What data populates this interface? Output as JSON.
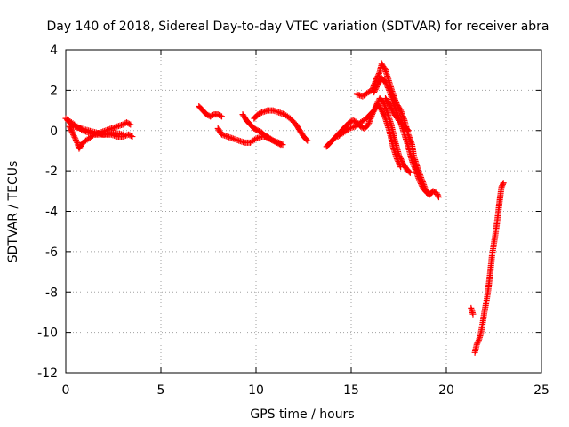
{
  "chart_data": {
    "type": "scatter",
    "title": "Day 140 of 2018, Sidereal Day-to-day VTEC variation (SDTVAR) for receiver abra",
    "xlabel": "GPS time / hours",
    "ylabel": "SDTVAR / TECUs",
    "xlim": [
      0,
      25
    ],
    "ylim": [
      -12,
      4
    ],
    "xticks": [
      "0",
      "5",
      "10",
      "15",
      "20",
      "25"
    ],
    "yticks": [
      "4",
      "2",
      "0",
      "-2",
      "-4",
      "-6",
      "-8",
      "-10",
      "-12"
    ],
    "grid": true,
    "marker": "+",
    "color": "#ff0000",
    "series": [
      {
        "name": "SDTVAR",
        "segments": [
          [
            [
              0.0,
              0.6
            ],
            [
              0.3,
              0.4
            ],
            [
              0.6,
              0.2
            ],
            [
              0.9,
              0.0
            ],
            [
              1.2,
              -0.1
            ],
            [
              1.5,
              -0.2
            ],
            [
              1.8,
              -0.2
            ],
            [
              2.1,
              -0.2
            ],
            [
              2.4,
              -0.2
            ],
            [
              2.7,
              -0.3
            ],
            [
              3.0,
              -0.3
            ],
            [
              3.3,
              -0.2
            ],
            [
              3.5,
              -0.3
            ]
          ],
          [
            [
              0.2,
              0.2
            ],
            [
              0.4,
              -0.2
            ],
            [
              0.6,
              -0.6
            ],
            [
              0.7,
              -0.9
            ],
            [
              0.9,
              -0.6
            ],
            [
              1.2,
              -0.4
            ],
            [
              1.5,
              -0.2
            ],
            [
              1.8,
              -0.1
            ],
            [
              2.1,
              0.0
            ],
            [
              2.4,
              0.1
            ],
            [
              2.7,
              0.2
            ],
            [
              3.0,
              0.3
            ],
            [
              3.2,
              0.4
            ],
            [
              3.4,
              0.3
            ]
          ],
          [
            [
              0.1,
              0.5
            ],
            [
              0.4,
              0.2
            ],
            [
              0.8,
              0.1
            ],
            [
              1.2,
              0.0
            ],
            [
              1.6,
              -0.1
            ],
            [
              2.0,
              -0.2
            ],
            [
              2.5,
              -0.1
            ],
            [
              3.0,
              -0.2
            ]
          ],
          [
            [
              7.0,
              1.2
            ],
            [
              7.2,
              1.0
            ],
            [
              7.4,
              0.8
            ],
            [
              7.6,
              0.7
            ],
            [
              7.8,
              0.8
            ],
            [
              8.0,
              0.8
            ],
            [
              8.2,
              0.7
            ]
          ],
          [
            [
              8.0,
              0.1
            ],
            [
              8.2,
              -0.2
            ],
            [
              8.5,
              -0.3
            ],
            [
              8.8,
              -0.4
            ],
            [
              9.1,
              -0.5
            ],
            [
              9.4,
              -0.6
            ],
            [
              9.7,
              -0.6
            ],
            [
              10.0,
              -0.4
            ],
            [
              10.3,
              -0.3
            ],
            [
              10.6,
              -0.3
            ],
            [
              10.9,
              -0.5
            ],
            [
              11.2,
              -0.6
            ],
            [
              11.4,
              -0.7
            ]
          ],
          [
            [
              9.3,
              0.8
            ],
            [
              9.5,
              0.5
            ],
            [
              9.7,
              0.3
            ],
            [
              9.9,
              0.1
            ],
            [
              10.1,
              0.0
            ],
            [
              10.3,
              -0.1
            ],
            [
              10.5,
              -0.3
            ],
            [
              10.7,
              -0.4
            ],
            [
              10.9,
              -0.5
            ],
            [
              11.1,
              -0.6
            ],
            [
              11.3,
              -0.7
            ]
          ],
          [
            [
              9.9,
              0.6
            ],
            [
              10.1,
              0.8
            ],
            [
              10.3,
              0.9
            ],
            [
              10.6,
              1.0
            ],
            [
              10.9,
              1.0
            ],
            [
              11.2,
              0.9
            ],
            [
              11.5,
              0.8
            ],
            [
              11.8,
              0.6
            ],
            [
              12.1,
              0.3
            ],
            [
              12.3,
              0.0
            ],
            [
              12.5,
              -0.3
            ],
            [
              12.7,
              -0.5
            ]
          ],
          [
            [
              13.7,
              -0.8
            ],
            [
              13.9,
              -0.6
            ],
            [
              14.1,
              -0.4
            ],
            [
              14.3,
              -0.2
            ],
            [
              14.5,
              0.0
            ],
            [
              14.7,
              0.2
            ],
            [
              14.9,
              0.4
            ],
            [
              15.1,
              0.5
            ],
            [
              15.3,
              0.4
            ],
            [
              15.5,
              0.2
            ],
            [
              15.7,
              0.1
            ],
            [
              15.9,
              0.3
            ],
            [
              16.1,
              0.8
            ],
            [
              16.3,
              1.2
            ],
            [
              16.5,
              1.6
            ],
            [
              16.7,
              1.4
            ],
            [
              16.9,
              0.9
            ],
            [
              17.1,
              0.3
            ],
            [
              17.3,
              -0.5
            ],
            [
              17.5,
              -1.2
            ],
            [
              17.7,
              -1.6
            ],
            [
              17.9,
              -1.9
            ],
            [
              18.1,
              -2.1
            ]
          ],
          [
            [
              14.3,
              -0.3
            ],
            [
              14.6,
              -0.1
            ],
            [
              14.9,
              0.1
            ],
            [
              15.2,
              0.2
            ],
            [
              15.5,
              0.4
            ],
            [
              15.8,
              0.6
            ],
            [
              16.0,
              0.8
            ],
            [
              16.2,
              1.0
            ],
            [
              16.4,
              1.3
            ],
            [
              16.6,
              1.0
            ],
            [
              16.8,
              0.6
            ],
            [
              17.0,
              0.0
            ],
            [
              17.2,
              -0.8
            ],
            [
              17.4,
              -1.4
            ],
            [
              17.6,
              -1.8
            ]
          ],
          [
            [
              15.3,
              1.8
            ],
            [
              15.6,
              1.7
            ],
            [
              15.9,
              1.9
            ],
            [
              16.1,
              2.0
            ],
            [
              16.3,
              2.5
            ],
            [
              16.5,
              2.9
            ],
            [
              16.6,
              3.3
            ],
            [
              16.8,
              3.0
            ],
            [
              17.0,
              2.4
            ],
            [
              17.2,
              1.8
            ],
            [
              17.4,
              1.3
            ],
            [
              17.6,
              1.0
            ],
            [
              17.8,
              0.5
            ],
            [
              18.0,
              -0.2
            ],
            [
              18.2,
              -0.7
            ],
            [
              18.3,
              -1.3
            ],
            [
              18.5,
              -1.9
            ],
            [
              18.7,
              -2.4
            ],
            [
              18.9,
              -2.9
            ],
            [
              19.1,
              -3.2
            ],
            [
              19.3,
              -3.0
            ],
            [
              19.5,
              -3.1
            ],
            [
              19.6,
              -3.3
            ]
          ],
          [
            [
              16.2,
              1.9
            ],
            [
              16.4,
              2.3
            ],
            [
              16.6,
              2.6
            ],
            [
              16.8,
              2.4
            ],
            [
              17.0,
              2.0
            ],
            [
              17.2,
              1.4
            ],
            [
              17.4,
              0.9
            ],
            [
              17.6,
              0.4
            ],
            [
              17.8,
              -0.2
            ],
            [
              18.0,
              -0.8
            ],
            [
              18.2,
              -1.5
            ],
            [
              18.4,
              -2.0
            ],
            [
              18.6,
              -2.5
            ],
            [
              18.8,
              -2.9
            ],
            [
              19.0,
              -3.1
            ]
          ],
          [
            [
              16.8,
              1.6
            ],
            [
              17.0,
              1.3
            ],
            [
              17.2,
              0.9
            ],
            [
              17.5,
              0.5
            ],
            [
              17.8,
              0.2
            ],
            [
              18.0,
              0.0
            ]
          ],
          [
            [
              21.3,
              -8.8
            ],
            [
              21.4,
              -9.1
            ]
          ],
          [
            [
              21.5,
              -11.0
            ],
            [
              21.6,
              -10.6
            ],
            [
              21.7,
              -10.4
            ],
            [
              21.8,
              -10.1
            ],
            [
              21.9,
              -9.6
            ],
            [
              22.0,
              -9.0
            ],
            [
              22.1,
              -8.5
            ],
            [
              22.2,
              -7.9
            ],
            [
              22.3,
              -7.1
            ],
            [
              22.4,
              -6.2
            ],
            [
              22.5,
              -5.6
            ],
            [
              22.6,
              -5.0
            ],
            [
              22.7,
              -4.3
            ],
            [
              22.8,
              -3.5
            ],
            [
              22.9,
              -2.8
            ],
            [
              23.0,
              -2.6
            ]
          ]
        ]
      }
    ]
  }
}
